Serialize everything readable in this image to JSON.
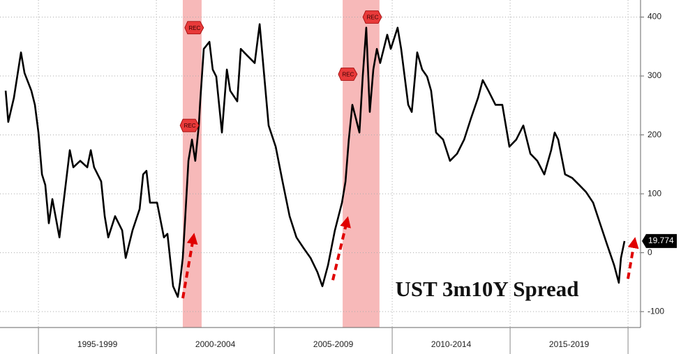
{
  "chart_data": {
    "type": "line",
    "title": "UST 3m10Y Spread",
    "x": [
      1993.61,
      1993.72,
      1993.96,
      1994.26,
      1994.41,
      1994.7,
      1994.85,
      1995.0,
      1995.15,
      1995.29,
      1995.44,
      1995.59,
      1995.89,
      1996.03,
      1996.33,
      1996.48,
      1996.77,
      1997.07,
      1997.22,
      1997.36,
      1997.66,
      1997.81,
      1997.96,
      1998.25,
      1998.55,
      1998.7,
      1998.99,
      1999.29,
      1999.44,
      1999.58,
      1999.73,
      2000.03,
      2000.32,
      2000.47,
      2000.71,
      2000.91,
      2001.0,
      2001.12,
      2001.21,
      2001.36,
      2001.51,
      2001.65,
      2001.8,
      2001.86,
      2002.01,
      2002.25,
      2002.39,
      2002.54,
      2002.78,
      2002.99,
      2003.13,
      2003.43,
      2003.58,
      2003.87,
      2004.17,
      2004.38,
      2004.55,
      2004.76,
      2005.06,
      2005.35,
      2005.65,
      2005.94,
      2006.24,
      2006.54,
      2006.83,
      2007.04,
      2007.28,
      2007.57,
      2007.87,
      2008.02,
      2008.16,
      2008.31,
      2008.46,
      2008.61,
      2008.75,
      2008.9,
      2009.05,
      2009.2,
      2009.35,
      2009.49,
      2009.64,
      2009.79,
      2009.94,
      2010.23,
      2010.38,
      2010.68,
      2010.83,
      2011.06,
      2011.27,
      2011.48,
      2011.65,
      2011.86,
      2012.16,
      2012.45,
      2012.75,
      2013.05,
      2013.34,
      2013.64,
      2013.84,
      2014.08,
      2014.38,
      2014.67,
      2014.97,
      2015.26,
      2015.56,
      2015.86,
      2016.15,
      2016.45,
      2016.74,
      2016.89,
      2017.04,
      2017.33,
      2017.63,
      2017.93,
      2018.22,
      2018.52,
      2018.81,
      2019.11,
      2019.41,
      2019.61,
      2019.7,
      2019.85
    ],
    "series": [
      {
        "color": "#000000",
        "values": [
          275,
          222,
          263,
          340,
          305,
          275,
          251,
          204,
          133,
          115,
          50,
          91,
          26,
          74,
          174,
          145,
          156,
          145,
          174,
          145,
          121,
          62,
          26,
          62,
          38,
          -9,
          38,
          74,
          133,
          139,
          85,
          85,
          26,
          32,
          -57,
          -75,
          -51,
          -9,
          50,
          156,
          192,
          156,
          216,
          257,
          346,
          358,
          311,
          299,
          204,
          311,
          275,
          257,
          346,
          334,
          322,
          388,
          311,
          216,
          180,
          121,
          62,
          26,
          8,
          -9,
          -33,
          -57,
          -21,
          38,
          85,
          121,
          192,
          251,
          228,
          204,
          299,
          382,
          239,
          311,
          346,
          322,
          346,
          370,
          346,
          382,
          346,
          251,
          239,
          340,
          311,
          299,
          275,
          204,
          192,
          156,
          168,
          192,
          228,
          263,
          293,
          275,
          251,
          251,
          180,
          192,
          216,
          168,
          156,
          133,
          174,
          204,
          192,
          133,
          127,
          115,
          103,
          85,
          50,
          14,
          -21,
          -51,
          -9,
          19.774
        ]
      }
    ],
    "xlim": [
      1993.37,
      2020.53
    ],
    "xticks": [
      1995,
      2000,
      2005,
      2010,
      2015,
      2020
    ],
    "x_band_labels": [
      "1995-1999",
      "2000-2004",
      "2005-2009",
      "2010-2014",
      "2015-2019"
    ],
    "ylim": [
      -127,
      429
    ],
    "yticks": [
      400,
      300,
      200,
      100,
      0,
      -100
    ],
    "grid": true,
    "shaded_regions": [
      {
        "start": 2001.12,
        "end": 2001.92,
        "color": "#f7b9b9"
      },
      {
        "start": 2007.9,
        "end": 2009.46,
        "color": "#f7b9b9"
      }
    ],
    "annotations": [
      {
        "x": 2001.45,
        "y": 216,
        "label": "REC"
      },
      {
        "x": 2001.65,
        "y": 382,
        "label": "REC"
      },
      {
        "x": 2008.16,
        "y": 303,
        "label": "REC"
      },
      {
        "x": 2009.2,
        "y": 400,
        "label": "REC"
      }
    ]
  }
}
